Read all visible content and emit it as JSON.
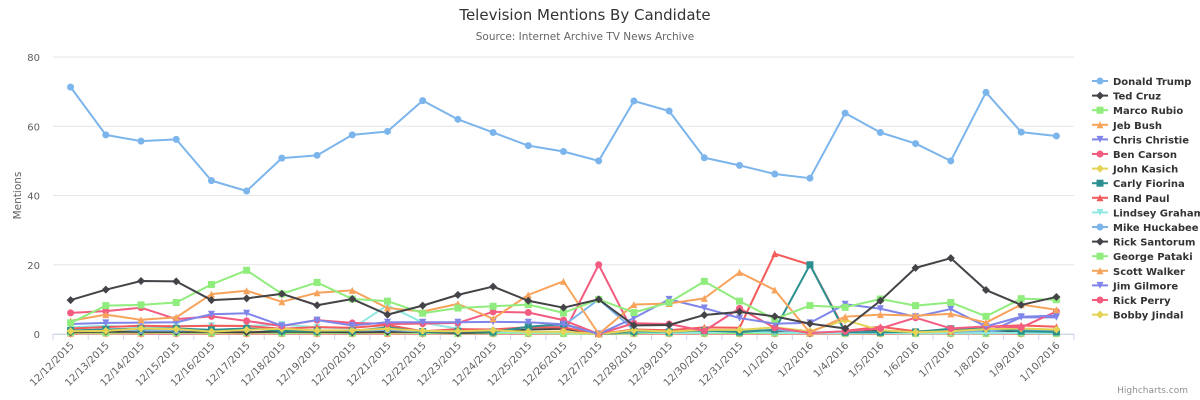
{
  "chart_data": {
    "type": "line",
    "title": "Television Mentions By Candidate",
    "subtitle": "Source: Internet Archive TV News Archive",
    "xlabel": "",
    "ylabel": "Mentions",
    "ylim": [
      0,
      80
    ],
    "yticks": [
      0,
      20,
      40,
      60,
      80
    ],
    "grid": true,
    "legend_position": "right",
    "credits": "Highcharts.com",
    "categories": [
      "12/12/2015",
      "12/13/2015",
      "12/14/2015",
      "12/15/2015",
      "12/16/2015",
      "12/17/2015",
      "12/18/2015",
      "12/19/2015",
      "12/20/2015",
      "12/21/2015",
      "12/22/2015",
      "12/23/2015",
      "12/24/2015",
      "12/25/2015",
      "12/26/2015",
      "12/27/2015",
      "12/28/2015",
      "12/29/2015",
      "12/30/2015",
      "12/31/2015",
      "1/1/2016",
      "1/2/2016",
      "1/4/2016",
      "1/5/2016",
      "1/6/2016",
      "1/7/2016",
      "1/8/2016",
      "1/9/2016",
      "1/10/2016"
    ],
    "series": [
      {
        "name": "Donald Trump",
        "color": "#7cb5ec",
        "marker": "circle",
        "values": [
          71.3,
          57.5,
          55.7,
          56.2,
          44.3,
          41.3,
          50.8,
          51.6,
          57.5,
          58.5,
          67.4,
          62,
          58.2,
          54.4,
          52.7,
          50,
          67.3,
          64.4,
          50.9,
          48.7,
          46.2,
          45,
          63.8,
          58.2,
          55,
          50,
          69.8,
          58.3,
          57.2
        ]
      },
      {
        "name": "Ted Cruz",
        "color": "#434348",
        "marker": "diamond",
        "values": [
          9.8,
          12.8,
          15.3,
          15.2,
          9.8,
          10.3,
          11.6,
          8.3,
          10.1,
          5.6,
          8.2,
          11.3,
          13.7,
          9.6,
          7.6,
          10,
          2.5,
          2.6,
          5.5,
          6.4,
          5.1,
          3,
          1.6,
          9.6,
          19.1,
          21.9,
          12.7,
          8.4,
          10.7
        ]
      },
      {
        "name": "Marco Rubio",
        "color": "#90ed7d",
        "marker": "square",
        "values": [
          3.2,
          8.2,
          8.4,
          9.1,
          14.3,
          18.4,
          11.6,
          14.9,
          10.1,
          9.5,
          6,
          7.5,
          8,
          8.5,
          6.1,
          10,
          6.2,
          9.1,
          15.2,
          9.5,
          4.3,
          8.2,
          7.7,
          10.1,
          8.2,
          9.1,
          5.1,
          10.2,
          9.9
        ]
      },
      {
        "name": "Jeb Bush",
        "color": "#f7a35c",
        "marker": "triangle",
        "values": [
          3.8,
          5.6,
          4.1,
          4.8,
          11.5,
          12.5,
          9.3,
          11.9,
          12.6,
          7.5,
          6.5,
          8.7,
          4.4,
          11.3,
          15.2,
          0,
          8.5,
          8.8,
          10.3,
          17.8,
          12.7,
          0.4,
          5,
          5.6,
          5.3,
          5.8,
          3.3,
          8.5,
          7
        ]
      },
      {
        "name": "Chris Christie",
        "color": "#8085e9",
        "marker": "triangle-down",
        "values": [
          2.9,
          3.2,
          3.3,
          3.4,
          5.7,
          6,
          2.4,
          4,
          2.5,
          3.4,
          3.4,
          3.4,
          3.5,
          3.4,
          2.8,
          0,
          4.6,
          10,
          7.5,
          4.6,
          3,
          3.2,
          8.6,
          7.3,
          5,
          7.2,
          2.2,
          5,
          5.3
        ]
      },
      {
        "name": "Ben Carson",
        "color": "#f15c80",
        "marker": "circle",
        "values": [
          6.1,
          6.6,
          7.6,
          4.3,
          5.1,
          3.8,
          2.3,
          4,
          3.2,
          2.9,
          3,
          3.2,
          6.4,
          6.2,
          4,
          0,
          3.1,
          2.9,
          0.9,
          7.4,
          1.8,
          0.3,
          0.8,
          1.6,
          4.7,
          1.6,
          2.2,
          1.9,
          6.5
        ]
      },
      {
        "name": "John Kasich",
        "color": "#e4d354",
        "marker": "diamond",
        "values": [
          0.8,
          0.9,
          1.6,
          1.4,
          0.7,
          1.2,
          1.5,
          1,
          1.1,
          1.5,
          0.9,
          0.8,
          1.1,
          0.6,
          0.7,
          0,
          1.1,
          0.7,
          1.2,
          1.2,
          1.9,
          0.8,
          4,
          1.1,
          0.5,
          0.8,
          1.4,
          1.6,
          1.3
        ]
      },
      {
        "name": "Carly Fiorina",
        "color": "#2b908f",
        "marker": "square",
        "values": [
          1,
          1.3,
          1.5,
          1.6,
          1.2,
          1.6,
          0.9,
          0.9,
          0.9,
          1.9,
          0.7,
          0.8,
          0.6,
          2.1,
          2.9,
          0,
          0.8,
          0.6,
          1,
          0.6,
          1.2,
          20,
          0.5,
          0.5,
          0.6,
          1.5,
          1.6,
          0.8,
          0.6
        ]
      },
      {
        "name": "Rand Paul",
        "color": "#f45b5b",
        "marker": "triangle",
        "values": [
          1.6,
          2,
          2.4,
          2.2,
          2.4,
          2.3,
          1.5,
          2,
          1.8,
          2.6,
          0.8,
          1.4,
          1.3,
          2,
          1.9,
          0,
          1.3,
          1.1,
          1.9,
          1.8,
          23.2,
          20,
          0.9,
          2.1,
          0.8,
          0.8,
          2.1,
          2.5,
          2.1
        ]
      },
      {
        "name": "Lindsey Graham",
        "color": "#91e8e1",
        "marker": "triangle-down",
        "values": [
          1.9,
          2.4,
          1.9,
          2.3,
          2.4,
          2.3,
          2.7,
          1.9,
          1.6,
          8.3,
          3.3,
          1.5,
          0.6,
          0.4,
          0.4,
          0,
          0.6,
          0.3,
          0.4,
          0.7,
          0.4,
          0.3,
          0.3,
          0.3,
          0.2,
          0.2,
          0.3,
          0.3,
          0.2
        ]
      },
      {
        "name": "Mike Huckabee",
        "color": "#7cb5ec",
        "marker": "circle",
        "values": [
          0.9,
          1.3,
          1,
          1,
          1.2,
          1.5,
          1.4,
          1,
          1,
          1.2,
          0.7,
          0.7,
          1,
          1.9,
          2.4,
          10,
          1.2,
          0.9,
          0.8,
          0.6,
          1.3,
          0.4,
          0.7,
          0.5,
          0.6,
          0.9,
          0.8,
          1.3,
          1
        ]
      },
      {
        "name": "Rick Santorum",
        "color": "#434348",
        "marker": "diamond",
        "values": [
          0.5,
          0.7,
          0.6,
          0.6,
          0.6,
          0.5,
          0.7,
          0.6,
          0.5,
          0.6,
          0.6,
          0.3,
          0.5,
          1.3,
          1.5,
          0,
          0.5,
          0.6,
          0.6,
          0.6,
          0.7,
          0.3,
          0.5,
          0.9,
          0.6,
          0.6,
          0.5,
          0.7,
          0.6
        ]
      },
      {
        "name": "George Pataki",
        "color": "#90ed7d",
        "marker": "square",
        "values": [
          0.4,
          0.4,
          0.5,
          0.4,
          0.4,
          0.5,
          0.3,
          0.4,
          0.3,
          0.5,
          0.3,
          0.2,
          0.3,
          0.3,
          0.2,
          0,
          0.3,
          0.3,
          0.3,
          0.3,
          0.3,
          0.3,
          0.2,
          0.3,
          0.2,
          0.3,
          0.2,
          0.3,
          0.2
        ]
      },
      {
        "name": "Scott Walker",
        "color": "#f7a35c",
        "marker": "triangle",
        "values": [
          0.2,
          0.3,
          0.2,
          0.3,
          0.2,
          0.2,
          0.2,
          0.2,
          0.2,
          0.2,
          0.2,
          0.2,
          0.2,
          0.2,
          0.2,
          0,
          0.2,
          0.2,
          0.2,
          0.2,
          0.2,
          0.2,
          0.2,
          0.2,
          0.2,
          0.2,
          0.2,
          0.2,
          0.2
        ]
      },
      {
        "name": "Jim Gilmore",
        "color": "#8085e9",
        "marker": "triangle-down",
        "values": [
          0.3,
          0.4,
          0.3,
          0.3,
          0.3,
          0.3,
          0.3,
          0.3,
          0.3,
          0.3,
          0.3,
          0.3,
          0.3,
          0.3,
          0.3,
          0,
          0.3,
          0.3,
          0.3,
          0.3,
          0.3,
          0.3,
          0.3,
          0.3,
          0.3,
          0.3,
          0.3,
          4.8,
          4.8
        ]
      },
      {
        "name": "Rick Perry",
        "color": "#f15c80",
        "marker": "circle",
        "values": [
          0.1,
          0.2,
          0.1,
          0.1,
          0.1,
          0.1,
          0.1,
          0.1,
          0.1,
          0.1,
          0.1,
          0.1,
          0.1,
          0.1,
          0.1,
          20,
          0.1,
          0.1,
          0.1,
          0.1,
          0.1,
          0.1,
          0.1,
          0.1,
          0.1,
          0.1,
          0.1,
          0.1,
          0.1
        ]
      },
      {
        "name": "Bobby Jindal",
        "color": "#e4d354",
        "marker": "diamond",
        "values": [
          0.1,
          0.1,
          0.1,
          0.1,
          0.1,
          0.1,
          0.1,
          0.1,
          0.1,
          0.1,
          0.1,
          0.1,
          0.1,
          0.1,
          0.1,
          0,
          0.1,
          0.1,
          0.1,
          0.1,
          0.1,
          0.1,
          0.1,
          0.1,
          0.1,
          0.1,
          0.1,
          0.1,
          0.1
        ]
      }
    ]
  }
}
